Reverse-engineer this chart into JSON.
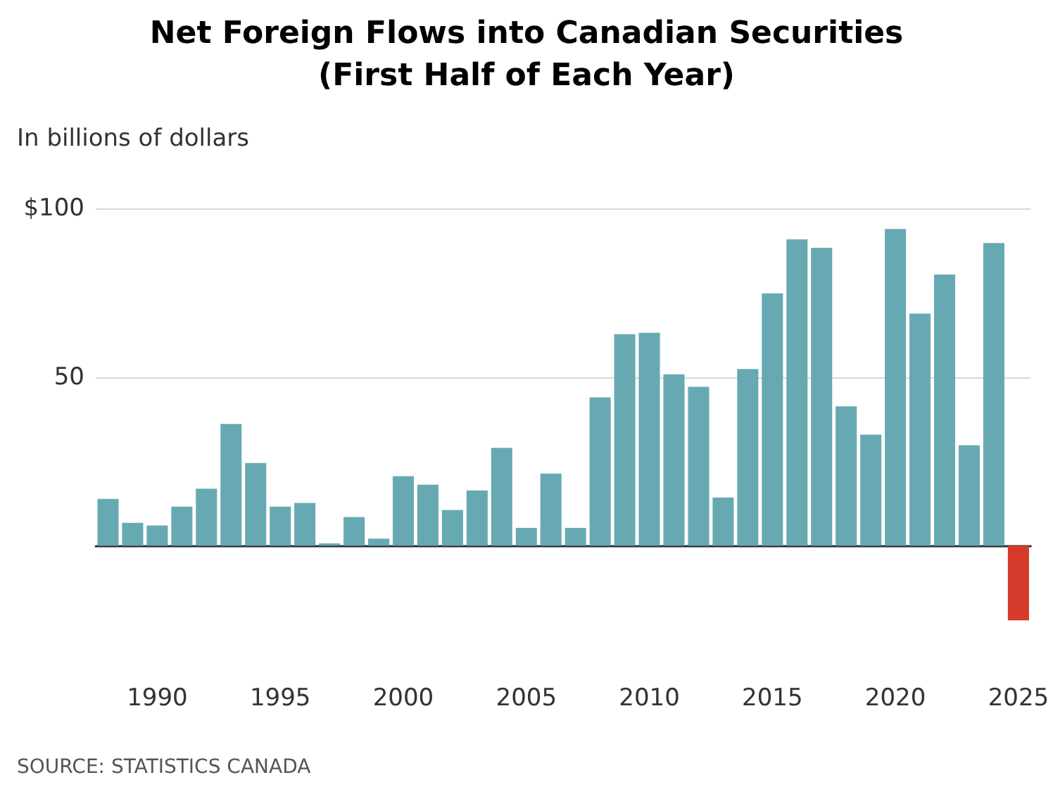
{
  "chart_data": {
    "type": "bar",
    "title": "Net Foreign Flows into Canadian Securities\n(First Half of Each Year)",
    "ylabel": "In billions of dollars",
    "annotations": [
      "SOURCE: STATISTICS CANADA"
    ],
    "categories": [
      null,
      null,
      "1990",
      null,
      null,
      null,
      null,
      "1995",
      null,
      null,
      null,
      null,
      "2000",
      null,
      null,
      null,
      null,
      "2005",
      null,
      null,
      null,
      null,
      "2010",
      null,
      null,
      null,
      null,
      "2015",
      null,
      null,
      null,
      null,
      "2020",
      null,
      null,
      null,
      null,
      "2025"
    ],
    "values": [
      13.9,
      6.8,
      6.0,
      11.6,
      16.9,
      36.1,
      24.5,
      11.6,
      12.7,
      0.7,
      8.5,
      2.1,
      20.6,
      18.1,
      10.6,
      16.4,
      29.0,
      5.3,
      21.4,
      5.3,
      44.0,
      62.7,
      63.1,
      50.8,
      47.1,
      14.3,
      52.4,
      74.8,
      90.8,
      88.3,
      41.3,
      32.9,
      93.9,
      68.8,
      80.4,
      29.8,
      89.7,
      -22.1
    ],
    "colors": [
      "#67a9b3",
      "#67a9b3",
      "#67a9b3",
      "#67a9b3",
      "#67a9b3",
      "#67a9b3",
      "#67a9b3",
      "#67a9b3",
      "#67a9b3",
      "#67a9b3",
      "#67a9b3",
      "#67a9b3",
      "#67a9b3",
      "#67a9b3",
      "#67a9b3",
      "#67a9b3",
      "#67a9b3",
      "#67a9b3",
      "#67a9b3",
      "#67a9b3",
      "#67a9b3",
      "#67a9b3",
      "#67a9b3",
      "#67a9b3",
      "#67a9b3",
      "#67a9b3",
      "#67a9b3",
      "#67a9b3",
      "#67a9b3",
      "#67a9b3",
      "#67a9b3",
      "#67a9b3",
      "#67a9b3",
      "#67a9b3",
      "#67a9b3",
      "#67a9b3",
      "#67a9b3",
      "#d63a2a"
    ],
    "ylim": [
      -22.1,
      100
    ],
    "yticks": [
      {
        "value": 0,
        "label": null
      },
      50,
      {
        "value": 100,
        "label": "$100"
      }
    ],
    "grid": "y"
  }
}
